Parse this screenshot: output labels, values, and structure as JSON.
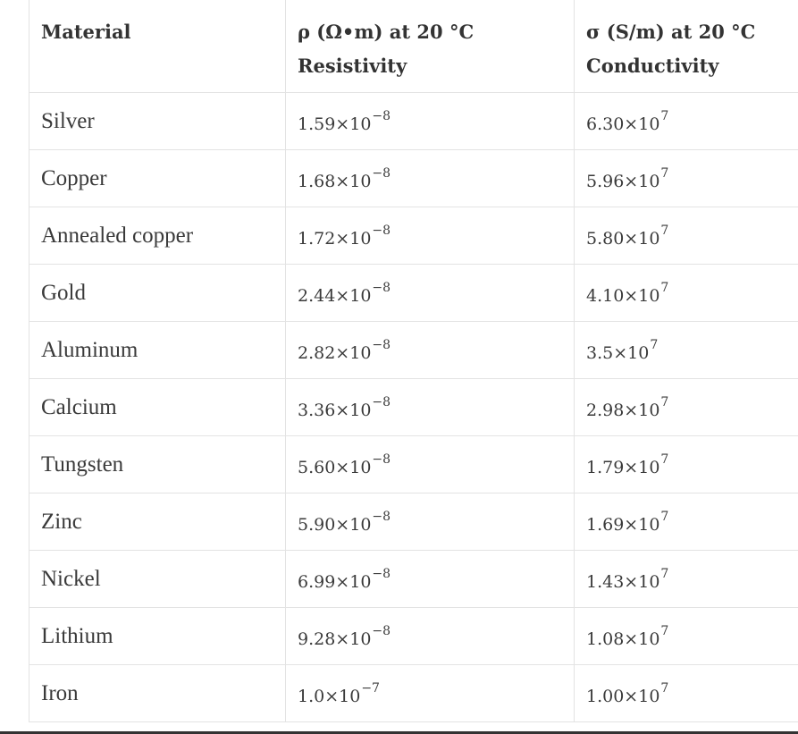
{
  "table": {
    "headers": [
      {
        "line1": "Material",
        "line2": ""
      },
      {
        "line1": "ρ (Ω•m) at 20 °C",
        "line2": "Resistivity"
      },
      {
        "line1": "σ (S/m) at 20 °C",
        "line2": "Conductivity"
      }
    ],
    "rows": [
      {
        "material": "Silver",
        "rho_base": "1.59×10",
        "rho_exp": "−8",
        "sigma_base": "6.30×10",
        "sigma_exp": "7"
      },
      {
        "material": "Copper",
        "rho_base": "1.68×10",
        "rho_exp": "−8",
        "sigma_base": "5.96×10",
        "sigma_exp": "7"
      },
      {
        "material": "Annealed copper",
        "rho_base": "1.72×10",
        "rho_exp": "−8",
        "sigma_base": "5.80×10",
        "sigma_exp": "7"
      },
      {
        "material": "Gold",
        "rho_base": "2.44×10",
        "rho_exp": "−8",
        "sigma_base": "4.10×10",
        "sigma_exp": "7"
      },
      {
        "material": "Aluminum",
        "rho_base": "2.82×10",
        "rho_exp": "−8",
        "sigma_base": "3.5×10",
        "sigma_exp": "7"
      },
      {
        "material": "Calcium",
        "rho_base": "3.36×10",
        "rho_exp": "−8",
        "sigma_base": "2.98×10",
        "sigma_exp": "7"
      },
      {
        "material": "Tungsten",
        "rho_base": "5.60×10",
        "rho_exp": "−8",
        "sigma_base": "1.79×10",
        "sigma_exp": "7"
      },
      {
        "material": "Zinc",
        "rho_base": "5.90×10",
        "rho_exp": "−8",
        "sigma_base": "1.69×10",
        "sigma_exp": "7"
      },
      {
        "material": "Nickel",
        "rho_base": "6.99×10",
        "rho_exp": "−8",
        "sigma_base": "1.43×10",
        "sigma_exp": "7"
      },
      {
        "material": "Lithium",
        "rho_base": "9.28×10",
        "rho_exp": "−8",
        "sigma_base": "1.08×10",
        "sigma_exp": "7"
      },
      {
        "material": "Iron",
        "rho_base": "1.0×10",
        "rho_exp": "−7",
        "sigma_base": "1.00×10",
        "sigma_exp": "7"
      }
    ]
  }
}
